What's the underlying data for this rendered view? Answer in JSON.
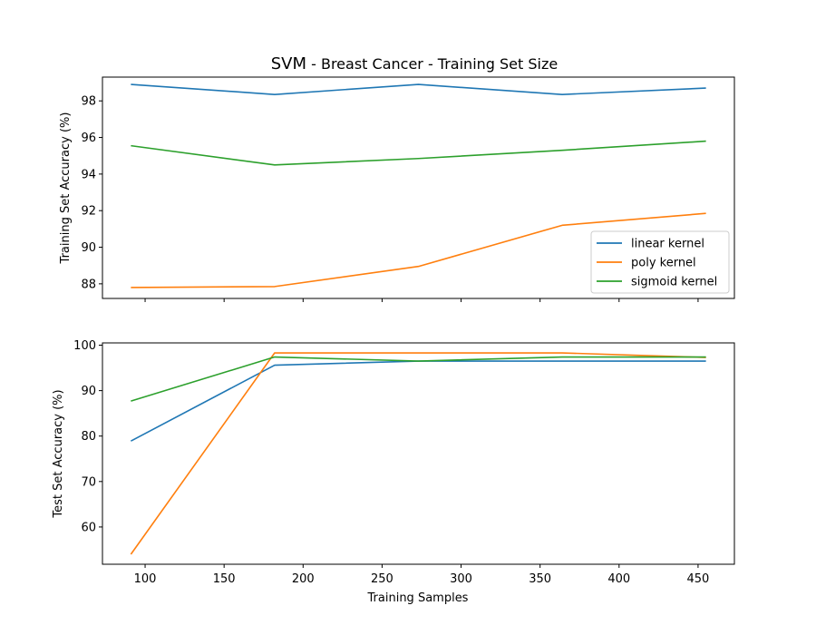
{
  "chart_data": {
    "type": "line",
    "title_main": "SVM",
    "title_sub": " - Breast Cancer - Training Set Size",
    "xlabel": "Training Samples",
    "x": [
      91,
      182,
      273,
      364,
      455
    ],
    "xlim": [
      73,
      473
    ],
    "xticks": [
      100,
      150,
      200,
      250,
      300,
      350,
      400,
      450
    ],
    "legend": {
      "location": "lower right",
      "panel": "top"
    },
    "colors": {
      "linear kernel": "#1f77b4",
      "poly kernel": "#ff7f0e",
      "sigmoid kernel": "#2ca02c"
    },
    "panels": [
      {
        "name": "training",
        "ylabel": "Training Set Accuracy (%)",
        "ylim": [
          87.2,
          99.3
        ],
        "yticks": [
          88,
          90,
          92,
          94,
          96,
          98
        ],
        "series": [
          {
            "name": "linear kernel",
            "values": [
              98.9,
              98.35,
              98.9,
              98.35,
              98.7
            ]
          },
          {
            "name": "poly kernel",
            "values": [
              87.8,
              87.85,
              88.95,
              91.2,
              91.85
            ]
          },
          {
            "name": "sigmoid kernel",
            "values": [
              95.55,
              94.5,
              94.85,
              95.3,
              95.8
            ]
          }
        ]
      },
      {
        "name": "test",
        "ylabel": "Test Set Accuracy (%)",
        "ylim": [
          51.8,
          100.5
        ],
        "yticks": [
          60,
          70,
          80,
          90,
          100
        ],
        "series": [
          {
            "name": "linear kernel",
            "values": [
              78.9,
              95.6,
              96.5,
              96.5,
              96.5
            ]
          },
          {
            "name": "poly kernel",
            "values": [
              54.0,
              98.3,
              98.3,
              98.3,
              97.3
            ]
          },
          {
            "name": "sigmoid kernel",
            "values": [
              87.7,
              97.4,
              96.5,
              97.4,
              97.4
            ]
          }
        ]
      }
    ]
  }
}
